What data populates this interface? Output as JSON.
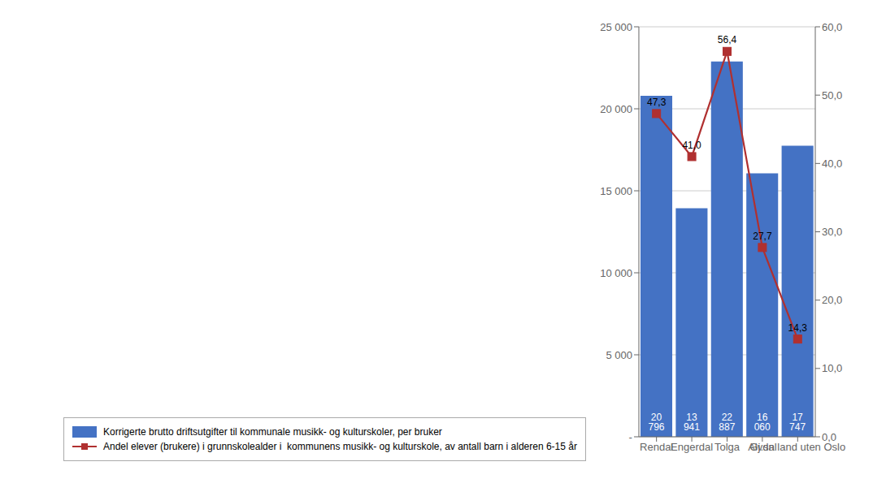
{
  "chart_data": {
    "type": "bar",
    "categories": [
      "Rendal",
      "Engerdal",
      "Tolga",
      "Alvdal",
      "Gj.sn land uten Oslo"
    ],
    "series": [
      {
        "name": "Korrigerte brutto driftsutgifter til kommunale musikk- og kulturskoler, per bruker",
        "type": "bar",
        "color": "#4472C4",
        "values": [
          20796,
          13941,
          22887,
          16060,
          17747
        ],
        "value_labels": [
          "20 796",
          "13 941",
          "22 887",
          "16 060",
          "17 747"
        ]
      },
      {
        "name": "Andel elever (brukere) i grunnskolealder i  kommunens musikk- og kulturskole, av antall barn i alderen 6-15 år",
        "type": "line",
        "axis": "y2",
        "color": "#B03030",
        "marker": "square",
        "values": [
          47.3,
          41.0,
          56.4,
          27.7,
          14.3
        ],
        "value_labels": [
          "47,3",
          "41,0",
          "56,4",
          "27,7",
          "14,3"
        ]
      }
    ],
    "ylim": [
      0,
      25000
    ],
    "yticks": [
      {
        "value": 0,
        "label": "-"
      },
      {
        "value": 5000,
        "label": "5 000"
      },
      {
        "value": 10000,
        "label": "10 000"
      },
      {
        "value": 15000,
        "label": "15 000"
      },
      {
        "value": 20000,
        "label": "20 000"
      },
      {
        "value": 25000,
        "label": "25 000"
      }
    ],
    "y2lim": [
      0,
      60
    ],
    "y2ticks": [
      {
        "value": 0,
        "label": "0,0"
      },
      {
        "value": 10,
        "label": "10,0"
      },
      {
        "value": 20,
        "label": "20,0"
      },
      {
        "value": 30,
        "label": "30,0"
      },
      {
        "value": 40,
        "label": "40,0"
      },
      {
        "value": 50,
        "label": "50,0"
      },
      {
        "value": 60,
        "label": "60,0"
      }
    ],
    "grid": true,
    "legend": "bottom",
    "data_labels": true
  }
}
